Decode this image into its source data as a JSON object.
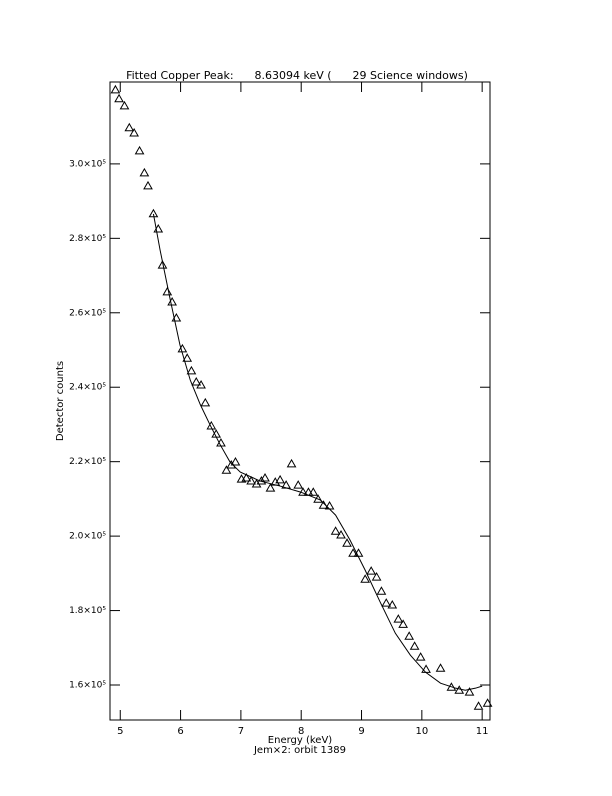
{
  "chart_data": {
    "type": "scatter",
    "title": "Fitted Copper Peak:      8.63094 keV (      29 Science windows)",
    "x_label": "Energy (keV)",
    "subtitle": "Jem×2: orbit 1389",
    "y_label": "Detector counts",
    "xlim": [
      4.83,
      11.13
    ],
    "ylim": [
      150600,
      322000
    ],
    "xticks": [
      5,
      6,
      7,
      8,
      9,
      10,
      11
    ],
    "yticks": [
      {
        "value": 160000,
        "label": "1.6×10⁵"
      },
      {
        "value": 180000,
        "label": "1.8×10⁵"
      },
      {
        "value": 200000,
        "label": "2.0×10⁵"
      },
      {
        "value": 220000,
        "label": "2.2×10⁵"
      },
      {
        "value": 240000,
        "label": "2.4×10⁵"
      },
      {
        "value": 260000,
        "label": "2.6×10⁵"
      },
      {
        "value": 280000,
        "label": "2.8×10⁵"
      },
      {
        "value": 300000,
        "label": "3.0×10⁵"
      }
    ],
    "color": "#000000",
    "series": [
      {
        "type": "scatter",
        "marker": "triangle",
        "x": [
          4.92,
          4.98,
          5.07,
          5.15,
          5.23,
          5.32,
          5.4,
          5.46,
          5.55,
          5.63,
          5.7,
          5.78,
          5.86,
          5.93,
          6.03,
          6.11,
          6.18,
          6.26,
          6.34,
          6.41,
          6.51,
          6.59,
          6.67,
          6.76,
          6.84,
          6.91,
          7.01,
          7.09,
          7.17,
          7.26,
          7.34,
          7.4,
          7.49,
          7.57,
          7.65,
          7.75,
          7.84,
          7.95,
          8.03,
          8.12,
          8.2,
          8.28,
          8.37,
          8.47,
          8.57,
          8.66,
          8.76,
          8.86,
          8.95,
          9.06,
          9.16,
          9.25,
          9.33,
          9.41,
          9.51,
          9.61,
          9.69,
          9.79,
          9.88,
          9.98,
          10.07,
          10.31,
          10.49,
          10.62,
          10.79,
          10.94,
          11.09
        ],
        "values": [
          319900,
          317500,
          315600,
          309700,
          308300,
          303500,
          297600,
          294100,
          286600,
          282500,
          272800,
          265600,
          262900,
          258600,
          250300,
          247800,
          244400,
          241400,
          240600,
          235800,
          229600,
          227400,
          225000,
          217700,
          219100,
          219900,
          215300,
          215600,
          214800,
          214000,
          214800,
          215600,
          212900,
          214500,
          215100,
          213700,
          219400,
          213700,
          211800,
          211800,
          211800,
          209900,
          208300,
          208100,
          201300,
          200300,
          198100,
          195400,
          195400,
          188400,
          190600,
          189000,
          185200,
          182000,
          181500,
          177700,
          176300,
          173100,
          170400,
          167500,
          164200,
          164500,
          159400,
          158600,
          158100,
          154300,
          155100
        ]
      },
      {
        "type": "line",
        "x": [
          5.55,
          5.66,
          5.83,
          5.99,
          6.16,
          6.33,
          6.49,
          6.66,
          6.82,
          6.99,
          7.32,
          7.65,
          7.99,
          8.32,
          8.57,
          8.81,
          9.06,
          9.31,
          9.56,
          9.81,
          10.06,
          10.31,
          10.56,
          10.72,
          10.89,
          11.0
        ],
        "values": [
          286560,
          276880,
          263440,
          251350,
          241940,
          235220,
          229840,
          224460,
          219900,
          217210,
          214790,
          213450,
          211830,
          209680,
          205650,
          198930,
          190860,
          182260,
          173930,
          168020,
          163450,
          160490,
          159150,
          158610,
          159150,
          159690
        ]
      }
    ]
  }
}
